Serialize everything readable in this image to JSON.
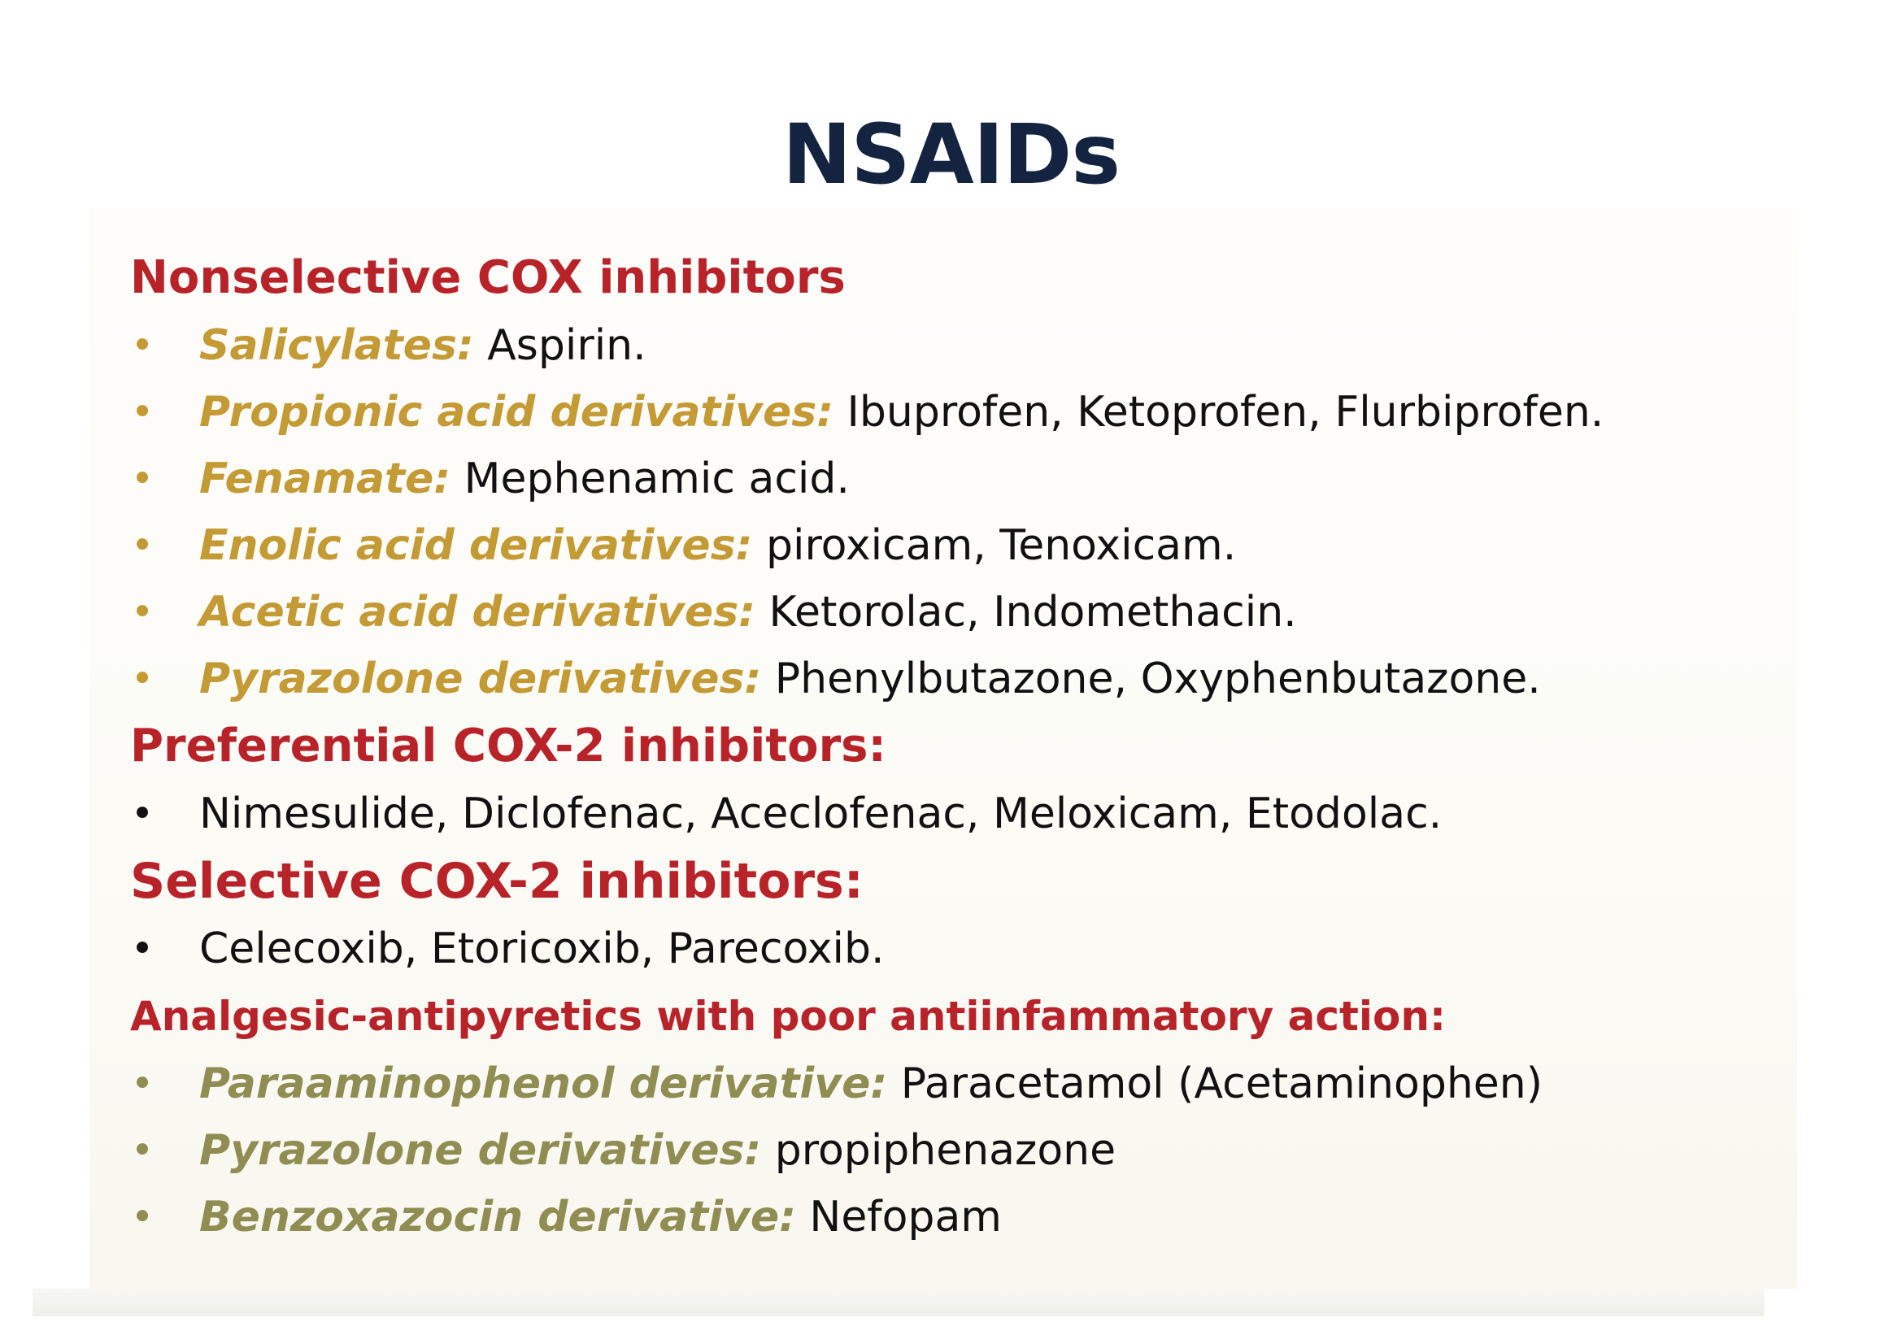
{
  "title": "NSAIDs",
  "sections": {
    "nonselective": {
      "heading": "Nonselective COX inhibitors",
      "items": [
        {
          "category": "Salicylates:",
          "drugs": " Aspirin."
        },
        {
          "category": "Propionic acid derivatives:",
          "drugs": " Ibuprofen, Ketoprofen, Flurbiprofen."
        },
        {
          "category": "Fenamate:",
          "drugs": " Mephenamic acid."
        },
        {
          "category": "Enolic acid derivatives:",
          "drugs": " piroxicam, Tenoxicam."
        },
        {
          "category": "Acetic acid derivatives:",
          "drugs": " Ketorolac, Indomethacin."
        },
        {
          "category": "Pyrazolone derivatives:",
          "drugs": " Phenylbutazone, Oxyphenbutazone."
        }
      ]
    },
    "preferential": {
      "heading": "Preferential COX-2 inhibitors:",
      "items": [
        {
          "drugs": "Nimesulide, Diclofenac, Aceclofenac, Meloxicam, Etodolac."
        }
      ]
    },
    "selective": {
      "heading": "Selective COX-2 inhibitors:",
      "items": [
        {
          "drugs": "Celecoxib, Etoricoxib, Parecoxib."
        }
      ]
    },
    "analgesic": {
      "heading": "Analgesic-antipyretics with poor antiinfammatory action:",
      "items": [
        {
          "category": "Paraaminophenol derivative:",
          "drugs": " Paracetamol (Acetaminophen)"
        },
        {
          "category": "Pyrazolone derivatives:",
          "drugs": " propiphenazone"
        },
        {
          "category": "Benzoxazocin derivative:",
          "drugs": " Nefopam"
        }
      ]
    }
  },
  "bullet": "•",
  "colors": {
    "title": "#14233f",
    "heading": "#b8232a",
    "category_gold": "#c39a34",
    "category_olive": "#8f8d52",
    "text": "#111111"
  }
}
